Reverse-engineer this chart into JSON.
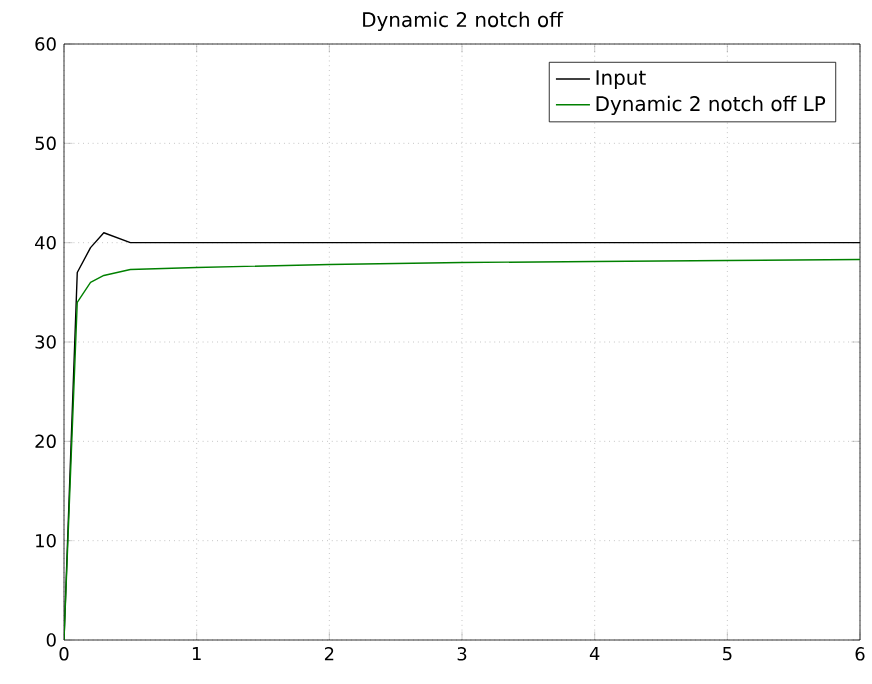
{
  "chart_data": {
    "type": "line",
    "title": "Dynamic 2 notch off",
    "xlim": [
      0,
      6
    ],
    "ylim": [
      0,
      60
    ],
    "xticks": [
      0,
      1,
      2,
      3,
      4,
      5,
      6
    ],
    "yticks": [
      0,
      10,
      20,
      30,
      40,
      50,
      60
    ],
    "grid": true,
    "legend": "top right",
    "series": [
      {
        "name": "Input",
        "color": "#000000",
        "x": [
          0,
          0.1,
          0.2,
          0.3,
          0.5,
          1,
          2,
          3,
          4,
          5,
          6
        ],
        "values": [
          0,
          37,
          39.5,
          41,
          40,
          40,
          40,
          40,
          40,
          40,
          40
        ]
      },
      {
        "name": "Dynamic 2 notch off LP",
        "color": "#008000",
        "x": [
          0,
          0.1,
          0.2,
          0.3,
          0.5,
          1,
          2,
          3,
          4,
          5,
          6
        ],
        "values": [
          0,
          34,
          36,
          36.7,
          37.3,
          37.5,
          37.8,
          38,
          38.1,
          38.2,
          38.3
        ]
      }
    ]
  }
}
